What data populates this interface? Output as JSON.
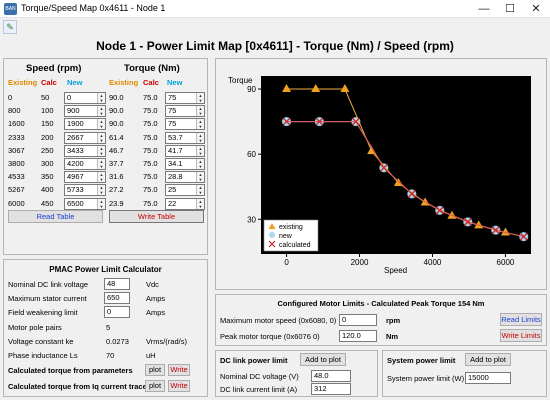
{
  "window": {
    "app_icon_text": "BAN",
    "title": "Torque/Speed Map 0x4611 - Node 1",
    "minimize": "—",
    "maximize": "☐",
    "close": "✕"
  },
  "toolbar": {
    "pin_icon": "pin-icon"
  },
  "main_title": "Node 1 - Power Limit Map [0x4611] - Torque (Nm) / Speed (rpm)",
  "table": {
    "speed_header": "Speed (rpm)",
    "torque_header": "Torque (Nm)",
    "col_existing": "Existing",
    "col_calc": "Calc",
    "col_new": "New",
    "rows": [
      {
        "speed_existing": "0",
        "speed_calc": "50",
        "speed_new": "0",
        "torque_existing": "90.0",
        "torque_calc": "75.0",
        "torque_new": "75"
      },
      {
        "speed_existing": "800",
        "speed_calc": "100",
        "speed_new": "900",
        "torque_existing": "90.0",
        "torque_calc": "75.0",
        "torque_new": "75"
      },
      {
        "speed_existing": "1600",
        "speed_calc": "150",
        "speed_new": "1900",
        "torque_existing": "90.0",
        "torque_calc": "75.0",
        "torque_new": "75"
      },
      {
        "speed_existing": "2333",
        "speed_calc": "200",
        "speed_new": "2667",
        "torque_existing": "61.4",
        "torque_calc": "75.0",
        "torque_new": "53.7"
      },
      {
        "speed_existing": "3067",
        "speed_calc": "250",
        "speed_new": "3433",
        "torque_existing": "46.7",
        "torque_calc": "75.0",
        "torque_new": "41.7"
      },
      {
        "speed_existing": "3800",
        "speed_calc": "300",
        "speed_new": "4200",
        "torque_existing": "37.7",
        "torque_calc": "75.0",
        "torque_new": "34.1"
      },
      {
        "speed_existing": "4533",
        "speed_calc": "350",
        "speed_new": "4967",
        "torque_existing": "31.6",
        "torque_calc": "75.0",
        "torque_new": "28.8"
      },
      {
        "speed_existing": "5267",
        "speed_calc": "400",
        "speed_new": "5733",
        "torque_existing": "27.2",
        "torque_calc": "75.0",
        "torque_new": "25"
      },
      {
        "speed_existing": "6000",
        "speed_calc": "450",
        "speed_new": "6500",
        "torque_existing": "23.9",
        "torque_calc": "75.0",
        "torque_new": "22"
      }
    ],
    "read_button": "Read Table",
    "write_button": "Write Table"
  },
  "chart_data": {
    "type": "line",
    "ylabel": "Torque",
    "xlabel": "Speed",
    "xlim": [
      -700,
      6700
    ],
    "ylim": [
      14,
      96
    ],
    "x_ticks": [
      "0",
      "2000",
      "4000",
      "6000"
    ],
    "y_ticks": [
      "30",
      "60",
      "90"
    ],
    "legend_position": "bottom-left",
    "series": [
      {
        "name": "existing",
        "marker": "triangle",
        "color": "#f0a020",
        "x": [
          0,
          800,
          1600,
          2333,
          3067,
          3800,
          4533,
          5267,
          6000
        ],
        "y": [
          90,
          90,
          90,
          61.4,
          46.7,
          37.7,
          31.6,
          27.2,
          23.9
        ]
      },
      {
        "name": "new",
        "marker": "circle",
        "color": "#a8d8f0",
        "x": [
          0,
          900,
          1900,
          2667,
          3433,
          4200,
          4967,
          5733,
          6500
        ],
        "y": [
          75,
          75,
          75,
          53.7,
          41.7,
          34.1,
          28.8,
          25,
          22
        ]
      },
      {
        "name": "calculated",
        "marker": "x",
        "color": "#d02020",
        "x": [
          0,
          900,
          1900,
          2667,
          3433,
          4200,
          4967,
          5733,
          6500
        ],
        "y": [
          75,
          75,
          75,
          53.7,
          41.7,
          34.1,
          28.8,
          25,
          22
        ]
      }
    ]
  },
  "pmac": {
    "title": "PMAC Power Limit Calculator",
    "rows": [
      {
        "label": "Nominal DC link voltage",
        "value": "48",
        "unit": "Vdc"
      },
      {
        "label": "Maximum stator current",
        "value": "650",
        "unit": "Amps"
      },
      {
        "label": "Field weakening limit",
        "value": "0",
        "unit": "Amps"
      },
      {
        "label": "Motor pole pairs",
        "value": "5",
        "unit": ""
      },
      {
        "label": "Voltage constant ke",
        "value": "0.0273",
        "unit": "Vrms/(rad/s)"
      },
      {
        "label": "Phase inductance Ls",
        "value": "70",
        "unit": "uH"
      }
    ],
    "calc_params_label": "Calculated torque from parameters",
    "calc_iq_label": "Calculated torque from Iq current trace",
    "plot_button": "plot",
    "write_button": "Write"
  },
  "limits": {
    "title": "Configured Motor Limits - Calculated Peak Torque 154 Nm",
    "max_speed_label": "Maximum motor speed (0x6080, 0)",
    "max_speed_value": "0",
    "max_speed_unit": "rpm",
    "peak_torque_label": "Peak motor torque (0x6076 0)",
    "peak_torque_value": "120.0",
    "peak_torque_unit": "Nm",
    "read_button": "Read Limits",
    "write_button": "Write Limits"
  },
  "dc_link": {
    "title": "DC link power limit",
    "add_button": "Add to plot",
    "voltage_label": "Nominal DC voltage (V)",
    "voltage_value": "48.0",
    "current_label": "DC link current limit (A)",
    "current_value": "312"
  },
  "system": {
    "title": "System power limit",
    "add_button": "Add to plot",
    "power_label": "System power limit (W)",
    "power_value": "15000"
  }
}
